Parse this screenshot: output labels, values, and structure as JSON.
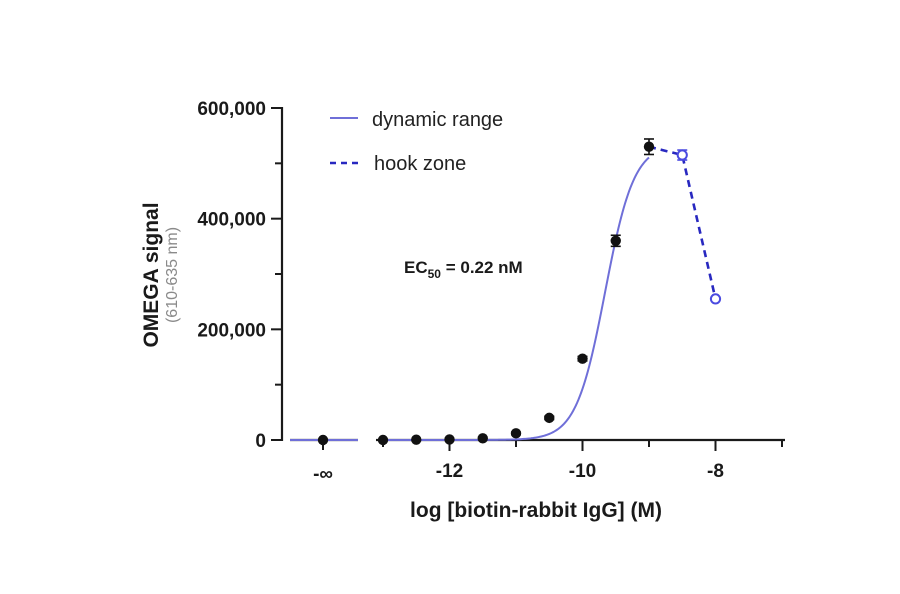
{
  "colors": {
    "fit_line": "#6f6fd8",
    "hook_line": "#2828c0",
    "hook_points": "#4a4ae0",
    "data_points": "#111111",
    "axis": "#1a1a1a"
  },
  "chart_data": {
    "type": "scatter",
    "xlabel": "log [biotin-rabbit IgG] (M)",
    "ylabel": "OMEGA signal",
    "ylabel_sub": "(610-635 nm)",
    "xlim": [
      -13.2,
      -7.0
    ],
    "ylim": [
      0,
      600000
    ],
    "x_ticks": [
      -12,
      -10,
      -8
    ],
    "x_tick_labels": [
      "-12",
      "-10",
      "-8"
    ],
    "x_break_tick_label": "-∞",
    "y_ticks": [
      0,
      200000,
      400000,
      600000
    ],
    "y_tick_labels": [
      "0",
      "200,000",
      "400,000",
      "600,000"
    ],
    "annotation": {
      "main": "EC",
      "sub": "50",
      "rest": " = 0.22 nM"
    },
    "legend": {
      "position": "top-left",
      "entries": [
        {
          "label": "dynamic range",
          "style": "solid"
        },
        {
          "label": "hook zone",
          "style": "dashed"
        }
      ]
    },
    "zero_point": {
      "y": 0
    },
    "series": [
      {
        "name": "dynamic range",
        "marker": "filled-circle",
        "x": [
          -13.0,
          -12.5,
          -12.0,
          -11.5,
          -11.0,
          -10.5,
          -10.0,
          -9.5,
          -9.0
        ],
        "y": [
          0,
          500,
          1000,
          3000,
          12000,
          40000,
          147000,
          360000,
          530000
        ],
        "err": [
          0,
          0,
          0,
          0,
          2000,
          3000,
          4000,
          10000,
          14000
        ]
      },
      {
        "name": "hook zone",
        "marker": "open-circle",
        "x": [
          -9.0,
          -8.5,
          -8.0
        ],
        "y": [
          530000,
          515000,
          255000
        ],
        "err": [
          0,
          9000,
          0
        ]
      }
    ],
    "fit": {
      "bottom": 0,
      "top": 535000,
      "log_ec50": -9.66,
      "hill": 2.0,
      "x_start": -13.0,
      "x_end": -9.0
    }
  }
}
